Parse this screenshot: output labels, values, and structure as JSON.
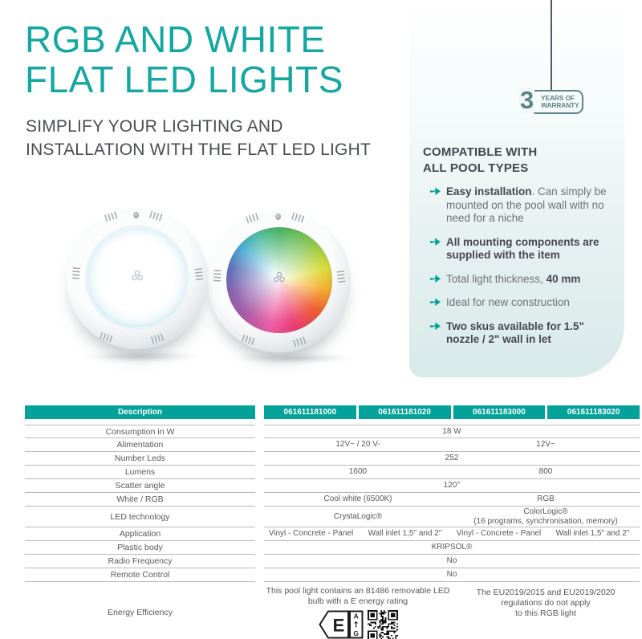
{
  "page_title": {
    "line1": "RGB AND WHITE",
    "line2": "FLAT LED LIGHTS"
  },
  "subtitle": {
    "line1": "SIMPLIFY YOUR LIGHTING AND",
    "line2": "INSTALLATION WITH THE FLAT LED LIGHT"
  },
  "warranty_badge": {
    "number": "3",
    "line1": "YEARS OF",
    "line2": "WARRANTY"
  },
  "features": {
    "heading_line1": "COMPATIBLE WITH",
    "heading_line2": "ALL POOL TYPES",
    "items": [
      {
        "segments": [
          {
            "text": "Easy installation",
            "bold": true
          },
          {
            "text": ". Can simply be mounted on the pool wall with no need for a niche",
            "bold": false
          }
        ]
      },
      {
        "segments": [
          {
            "text": "All mounting components are supplied with the item",
            "bold": true
          }
        ]
      },
      {
        "segments": [
          {
            "text": "Total light thickness, ",
            "bold": false
          },
          {
            "text": "40 mm",
            "bold": true
          }
        ]
      },
      {
        "segments": [
          {
            "text": "Ideal for new construction",
            "bold": false
          }
        ]
      },
      {
        "segments": [
          {
            "text": "Two skus available for 1.5\" nozzle / 2\" wall in let",
            "bold": true
          }
        ]
      }
    ]
  },
  "product_images": {
    "left_light": "white flat LED pool light",
    "right_light": "RGB flat LED pool light"
  },
  "table": {
    "header": [
      "Description",
      "061611181000",
      "061611181020",
      "061611183000",
      "061611183020"
    ],
    "rows": [
      {
        "label": "Consumption in W",
        "cells": [
          {
            "text": "18 W",
            "span": 4
          }
        ]
      },
      {
        "label": "Alimentation",
        "cells": [
          {
            "text": "12V~ / 20 V-",
            "span": 2
          },
          {
            "text": "12V~",
            "span": 2
          }
        ]
      },
      {
        "label": "Number Leds",
        "cells": [
          {
            "text": "252",
            "span": 4
          }
        ]
      },
      {
        "label": "Lumens",
        "cells": [
          {
            "text": "1600",
            "span": 2
          },
          {
            "text": "800",
            "span": 2
          }
        ]
      },
      {
        "label": "Scatter angle",
        "cells": [
          {
            "text": "120°",
            "span": 4
          }
        ]
      },
      {
        "label": "White / RGB",
        "cells": [
          {
            "text": "Cool white (6500K)",
            "span": 2
          },
          {
            "text": "RGB",
            "span": 2
          }
        ]
      },
      {
        "label": "LED technology",
        "cells": [
          {
            "text": "CrystaLogic®",
            "span": 2
          },
          {
            "text": "ColorLogic®\n(16 programs, synchronisation, memory)",
            "span": 2
          }
        ]
      },
      {
        "label": "Application",
        "cells": [
          {
            "text": "Vinyl - Concrete - Panel",
            "span": 1
          },
          {
            "text": "Wall inlet 1,5\" and 2\"",
            "span": 1
          },
          {
            "text": "Vinyl - Concrete - Panel",
            "span": 1
          },
          {
            "text": "Wall inlet 1,5\" and 2\"",
            "span": 1
          }
        ]
      },
      {
        "label": "Plastic body",
        "cells": [
          {
            "text": "KRIPSOL®",
            "span": 4
          }
        ]
      },
      {
        "label": "Radio Frequency",
        "cells": [
          {
            "text": "No",
            "span": 4
          }
        ]
      },
      {
        "label": "Remote Control",
        "cells": [
          {
            "text": "No",
            "span": 4
          }
        ]
      }
    ],
    "energy": {
      "label": "Energy Efficiency",
      "note_left": "This pool light contains an 81486 removable LED\nbulb with a E energy rating",
      "energy_class": "E",
      "scale_top": "A",
      "scale_arrow": "↑",
      "scale_bottom": "G",
      "note_right": "The EU2019/2015 and EU2019/2020\nregulations do not apply\nto this RGB light"
    }
  },
  "icons": {
    "bullet_arrow": "arrow-right",
    "energy_label": "energy-class-arrow",
    "qr": "qr-code"
  },
  "colors": {
    "accent_teal": "#02a19a",
    "title_teal": "#16a7a1",
    "badge_teal": "#5f8487",
    "text_gray": "#57585c"
  }
}
